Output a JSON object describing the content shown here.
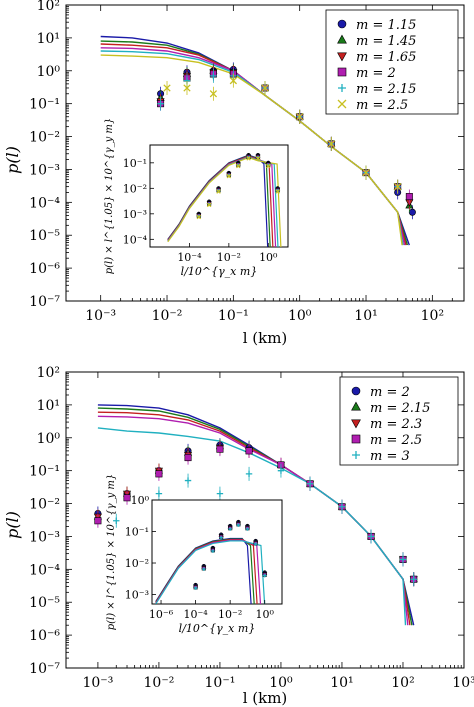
{
  "chart_data": [
    {
      "type": "scatter",
      "title": "",
      "xlabel": "l (km)",
      "ylabel": "p(l)",
      "xscale": "log",
      "yscale": "log",
      "xlim": [
        0.0003,
        300
      ],
      "ylim": [
        1e-07,
        100
      ],
      "x_ticks": [
        "10⁻³",
        "10⁻²",
        "10⁻¹",
        "10⁰",
        "10¹",
        "10²"
      ],
      "y_ticks": [
        "10⁻⁷",
        "10⁻⁶",
        "10⁻⁵",
        "10⁻⁴",
        "10⁻³",
        "10⁻²",
        "10⁻¹",
        "10⁰",
        "10¹",
        "10²"
      ],
      "legend_position": "top-right",
      "series": [
        {
          "name": "m = 1.15",
          "color": "#1a1aa8",
          "marker": "circle",
          "line": {
            "x": [
              0.001,
              0.003,
              0.01,
              0.03,
              0.1,
              0.3,
              1,
              3,
              10,
              30,
              45
            ],
            "y": [
              11,
              10,
              7,
              3.5,
              1.0,
              0.18,
              0.03,
              0.005,
              0.0008,
              5e-05,
              5e-06
            ]
          },
          "points": {
            "x": [
              0.008,
              0.02,
              0.05,
              0.1,
              0.3,
              1,
              3,
              10,
              30,
              50
            ],
            "y": [
              0.2,
              0.9,
              1.0,
              1.1,
              0.3,
              0.04,
              0.006,
              0.0008,
              0.0002,
              5e-05
            ]
          }
        },
        {
          "name": "m = 1.45",
          "color": "#1a7a1a",
          "marker": "triangle-up",
          "line": {
            "x": [
              0.001,
              0.003,
              0.01,
              0.03,
              0.1,
              0.3,
              1,
              3,
              10,
              30,
              42
            ],
            "y": [
              8,
              7.5,
              6,
              3.2,
              1.0,
              0.18,
              0.03,
              0.005,
              0.0008,
              5e-05,
              5e-06
            ]
          },
          "points": {
            "x": [
              0.008,
              0.02,
              0.05,
              0.1,
              0.3,
              1,
              3,
              10,
              30,
              45
            ],
            "y": [
              0.15,
              0.8,
              1.0,
              1.0,
              0.3,
              0.04,
              0.006,
              0.0008,
              0.0003,
              8e-05
            ]
          }
        },
        {
          "name": "m = 1.65",
          "color": "#c42020",
          "marker": "triangle-down",
          "line": {
            "x": [
              0.001,
              0.003,
              0.01,
              0.03,
              0.1,
              0.3,
              1,
              3,
              10,
              30,
              40
            ],
            "y": [
              6.5,
              6,
              5,
              3,
              1.0,
              0.18,
              0.03,
              0.005,
              0.0008,
              5e-05,
              5e-06
            ]
          },
          "points": {
            "x": [
              0.008,
              0.02,
              0.05,
              0.1,
              0.3,
              1,
              3,
              10,
              30,
              45
            ],
            "y": [
              0.12,
              0.7,
              0.9,
              0.9,
              0.3,
              0.04,
              0.006,
              0.0008,
              0.0003,
              0.0001
            ]
          }
        },
        {
          "name": "m = 2",
          "color": "#b01eb0",
          "marker": "square",
          "line": {
            "x": [
              0.001,
              0.003,
              0.01,
              0.03,
              0.1,
              0.3,
              1,
              3,
              10,
              30,
              38
            ],
            "y": [
              5,
              4.8,
              4,
              2.5,
              1.0,
              0.18,
              0.03,
              0.005,
              0.0008,
              5e-05,
              5e-06
            ]
          },
          "points": {
            "x": [
              0.008,
              0.02,
              0.05,
              0.1,
              0.3,
              1,
              3,
              10,
              30,
              45
            ],
            "y": [
              0.1,
              0.6,
              0.8,
              0.8,
              0.3,
              0.04,
              0.006,
              0.0008,
              0.0003,
              0.00015
            ]
          }
        },
        {
          "name": "m = 2.15",
          "color": "#20b0c0",
          "marker": "plus",
          "line": {
            "x": [
              0.001,
              0.003,
              0.01,
              0.03,
              0.1,
              0.3,
              1,
              3,
              10,
              30,
              36
            ],
            "y": [
              4,
              3.8,
              3.3,
              2.2,
              0.9,
              0.18,
              0.03,
              0.005,
              0.0008,
              5e-05,
              5e-06
            ]
          },
          "points": {
            "x": [
              0.008,
              0.02,
              0.05,
              0.1,
              0.3,
              1,
              3,
              10,
              30
            ],
            "y": [
              0.1,
              0.5,
              0.7,
              0.7,
              0.3,
              0.04,
              0.006,
              0.0008,
              0.0003
            ]
          }
        },
        {
          "name": "m = 2.5",
          "color": "#c8c020",
          "marker": "cross",
          "line": {
            "x": [
              0.001,
              0.003,
              0.01,
              0.03,
              0.1,
              0.3,
              1,
              3,
              10,
              30,
              35
            ],
            "y": [
              3,
              2.8,
              2.5,
              1.8,
              0.8,
              0.18,
              0.03,
              0.005,
              0.0008,
              5e-05,
              5e-06
            ]
          },
          "points": {
            "x": [
              0.01,
              0.02,
              0.05,
              0.1,
              0.3,
              1,
              3,
              10,
              30
            ],
            "y": [
              0.3,
              0.3,
              0.2,
              0.5,
              0.3,
              0.04,
              0.006,
              0.0008,
              0.0003
            ]
          }
        }
      ],
      "inset": {
        "xlabel": "l/10^{γ_x m}",
        "ylabel": "p(l) × l^{1.05} × 10^{γ_y m}",
        "x_ticks": [
          "10⁻⁴",
          "10⁻²",
          "10⁰"
        ],
        "y_ticks": [
          "10⁻⁴",
          "10⁻³",
          "10⁻²",
          "10⁻¹"
        ],
        "xlim": [
          1e-06,
          10
        ],
        "ylim": [
          5e-05,
          0.5
        ],
        "curves_x": [
          8e-06,
          3e-05,
          0.0001,
          0.001,
          0.01,
          0.1,
          0.3
        ],
        "curves_y": [
          0.0001,
          0.0004,
          0.002,
          0.02,
          0.1,
          0.2,
          0.15
        ],
        "cutoffs": [
          0.6,
          0.8,
          1.1,
          1.5,
          2.0,
          2.8
        ],
        "points_x": [
          0.0003,
          0.001,
          0.003,
          0.01,
          0.03,
          0.1,
          0.3,
          1,
          3
        ],
        "points_y": [
          0.001,
          0.003,
          0.01,
          0.04,
          0.1,
          0.2,
          0.2,
          0.1,
          0.01
        ]
      }
    },
    {
      "type": "scatter",
      "title": "",
      "xlabel": "l (km)",
      "ylabel": "p(l)",
      "xscale": "log",
      "yscale": "log",
      "xlim": [
        0.0003,
        1000
      ],
      "ylim": [
        1e-07,
        100
      ],
      "x_ticks": [
        "10⁻³",
        "10⁻²",
        "10⁻¹",
        "10⁰",
        "10¹",
        "10²",
        "10³"
      ],
      "y_ticks": [
        "10⁻⁷",
        "10⁻⁶",
        "10⁻⁵",
        "10⁻⁴",
        "10⁻³",
        "10⁻²",
        "10⁻¹",
        "10⁰",
        "10¹",
        "10²"
      ],
      "legend_position": "top-right",
      "series": [
        {
          "name": "m = 2",
          "color": "#1a1aa8",
          "marker": "circle",
          "line": {
            "x": [
              0.001,
              0.003,
              0.01,
              0.03,
              0.1,
              0.3,
              1,
              3,
              10,
              30,
              100,
              150
            ],
            "y": [
              10,
              9.5,
              8,
              5,
              2,
              0.6,
              0.15,
              0.04,
              0.008,
              0.001,
              5e-05,
              2e-06
            ]
          },
          "points": {
            "x": [
              0.001,
              0.003,
              0.01,
              0.03,
              0.1,
              0.3,
              1,
              3,
              10,
              30,
              100,
              150
            ],
            "y": [
              0.005,
              0.02,
              0.1,
              0.4,
              0.6,
              0.5,
              0.15,
              0.04,
              0.008,
              0.001,
              0.0002,
              5e-05
            ]
          }
        },
        {
          "name": "m = 2.15",
          "color": "#1a7a1a",
          "marker": "triangle-up",
          "line": {
            "x": [
              0.001,
              0.003,
              0.01,
              0.03,
              0.1,
              0.3,
              1,
              3,
              10,
              30,
              100,
              140
            ],
            "y": [
              8,
              7.5,
              6.5,
              4.2,
              1.8,
              0.55,
              0.15,
              0.04,
              0.008,
              0.001,
              5e-05,
              2e-06
            ]
          },
          "points": {
            "x": [
              0.001,
              0.003,
              0.01,
              0.03,
              0.1,
              0.3,
              1,
              3,
              10,
              30,
              100,
              150
            ],
            "y": [
              0.004,
              0.02,
              0.1,
              0.35,
              0.55,
              0.45,
              0.15,
              0.04,
              0.008,
              0.001,
              0.0002,
              5e-05
            ]
          }
        },
        {
          "name": "m = 2.3",
          "color": "#c42020",
          "marker": "triangle-down",
          "line": {
            "x": [
              0.001,
              0.003,
              0.01,
              0.03,
              0.1,
              0.3,
              1,
              3,
              10,
              30,
              100,
              130
            ],
            "y": [
              6,
              5.8,
              5,
              3.5,
              1.6,
              0.5,
              0.15,
              0.04,
              0.008,
              0.001,
              5e-05,
              2e-06
            ]
          },
          "points": {
            "x": [
              0.001,
              0.003,
              0.01,
              0.03,
              0.1,
              0.3,
              1,
              3,
              10,
              30,
              100,
              150
            ],
            "y": [
              0.004,
              0.02,
              0.1,
              0.3,
              0.5,
              0.4,
              0.15,
              0.04,
              0.008,
              0.001,
              0.0002,
              5e-05
            ]
          }
        },
        {
          "name": "m = 2.5",
          "color": "#b01eb0",
          "marker": "square",
          "line": {
            "x": [
              0.001,
              0.003,
              0.01,
              0.03,
              0.1,
              0.3,
              1,
              3,
              10,
              30,
              100,
              120
            ],
            "y": [
              4.5,
              4.3,
              3.8,
              2.8,
              1.4,
              0.45,
              0.15,
              0.04,
              0.008,
              0.001,
              5e-05,
              2e-06
            ]
          },
          "points": {
            "x": [
              0.001,
              0.003,
              0.01,
              0.03,
              0.1,
              0.3,
              1,
              3,
              10,
              30,
              100,
              150
            ],
            "y": [
              0.003,
              0.015,
              0.08,
              0.25,
              0.45,
              0.4,
              0.15,
              0.04,
              0.008,
              0.001,
              0.0002,
              5e-05
            ]
          }
        },
        {
          "name": "m = 3",
          "color": "#20b0c0",
          "marker": "plus",
          "line": {
            "x": [
              0.001,
              0.003,
              0.01,
              0.03,
              0.1,
              0.3,
              1,
              3,
              10,
              30,
              100,
              110
            ],
            "y": [
              2,
              1.6,
              1.4,
              1.1,
              0.8,
              0.35,
              0.12,
              0.04,
              0.008,
              0.001,
              5e-05,
              2e-06
            ]
          },
          "points": {
            "x": [
              0.002,
              0.01,
              0.03,
              0.1,
              0.3,
              1,
              3,
              10,
              30,
              100,
              150
            ],
            "y": [
              0.003,
              0.02,
              0.05,
              0.02,
              0.08,
              0.1,
              0.04,
              0.008,
              0.001,
              0.0002,
              5e-05
            ]
          }
        }
      ],
      "inset": {
        "xlabel": "l/10^{γ_x m}",
        "ylabel": "p(l) × l^{1.05} × 10^{γ_y m}",
        "x_ticks": [
          "10⁻⁶",
          "10⁻⁴",
          "10⁻²",
          "10⁰"
        ],
        "y_ticks": [
          "10⁻³",
          "10⁻²",
          "10⁻¹",
          "10⁰"
        ],
        "xlim": [
          3e-07,
          10
        ],
        "ylim": [
          0.0005,
          1
        ],
        "curves_x": [
          5e-07,
          2e-06,
          1e-05,
          0.0001,
          0.001,
          0.01,
          0.05
        ],
        "curves_y": [
          0.0006,
          0.002,
          0.008,
          0.03,
          0.05,
          0.06,
          0.06
        ],
        "cutoffs": [
          0.1,
          0.15,
          0.22,
          0.35,
          0.6
        ],
        "points_x": [
          0.0001,
          0.0003,
          0.001,
          0.003,
          0.01,
          0.03,
          0.1,
          0.3,
          1
        ],
        "points_y": [
          0.002,
          0.008,
          0.03,
          0.08,
          0.15,
          0.2,
          0.15,
          0.05,
          0.005
        ]
      }
    }
  ]
}
